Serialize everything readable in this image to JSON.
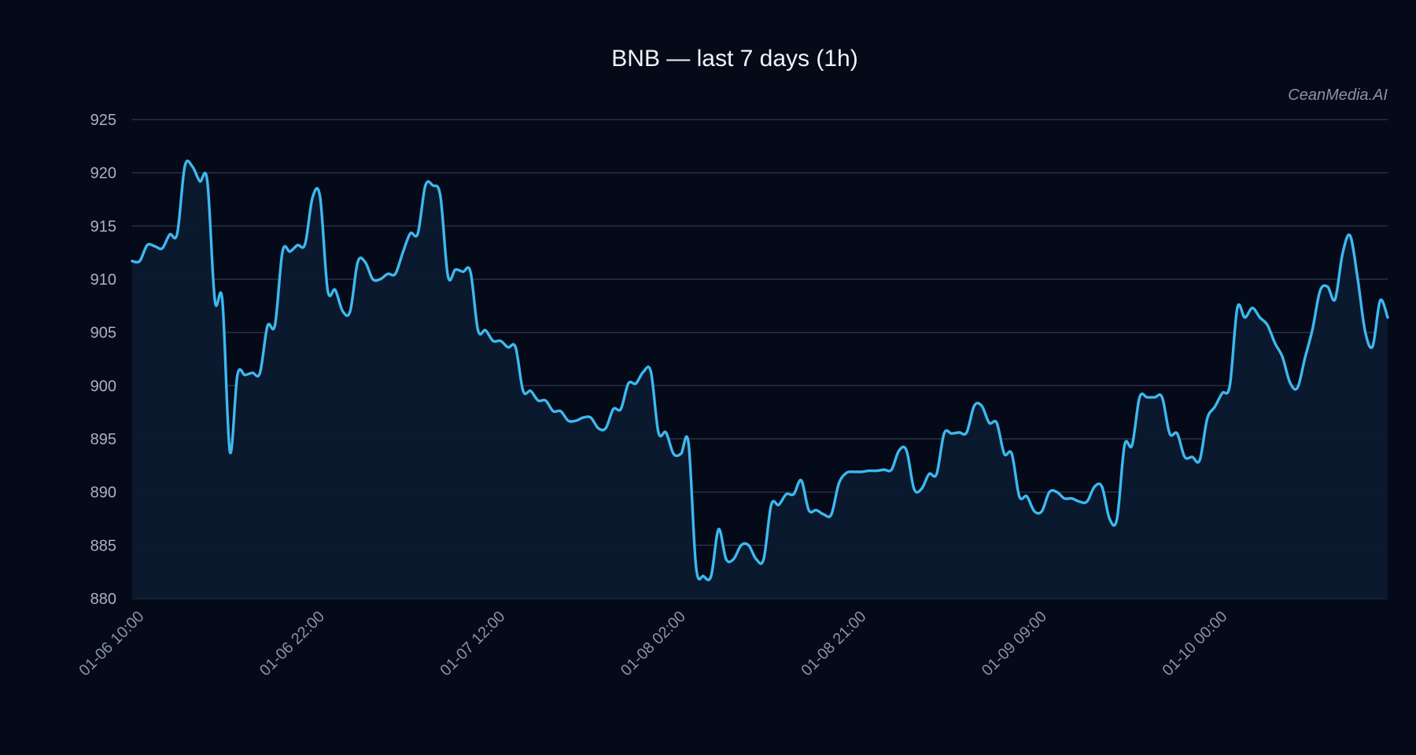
{
  "chart_data": {
    "type": "line",
    "title": "BNB — last 7 days (1h)",
    "watermark": "CeanMedia.AI",
    "xlabel": "",
    "ylabel": "",
    "ylim": [
      880,
      925
    ],
    "yticks": [
      880,
      885,
      890,
      895,
      900,
      905,
      910,
      915,
      920,
      925
    ],
    "x_tick_labels": [
      "01-06 10:00",
      "01-06 22:00",
      "01-07 12:00",
      "01-08 02:00",
      "01-08 21:00",
      "01-09 09:00",
      "01-10 00:00"
    ],
    "grid": true,
    "area_fill": true,
    "colors": {
      "background": "#050a19",
      "line": "#3db8f0",
      "fill": "#0b1a2e",
      "grid": "#2a3346"
    },
    "series": [
      {
        "values": [
          911.7,
          911.7,
          913.2,
          913.1,
          912.9,
          914.2,
          914.3,
          920.6,
          920.6,
          919.2,
          919.2,
          908.0,
          908.0,
          893.8,
          901.0,
          901.0,
          901.2,
          901.2,
          905.6,
          905.7,
          912.6,
          912.6,
          913.2,
          913.3,
          917.7,
          917.7,
          909.0,
          909.0,
          907.0,
          907.0,
          911.6,
          911.6,
          910.0,
          910.0,
          910.5,
          910.5,
          912.5,
          914.3,
          914.3,
          918.8,
          918.8,
          917.8,
          910.3,
          910.9,
          910.7,
          910.7,
          905.2,
          905.2,
          904.2,
          904.2,
          903.6,
          903.6,
          899.5,
          899.5,
          898.6,
          898.6,
          897.6,
          897.6,
          896.7,
          896.7,
          897.0,
          897.0,
          896.0,
          896.0,
          897.8,
          897.8,
          900.2,
          900.2,
          901.3,
          901.3,
          895.6,
          895.6,
          893.6,
          893.6,
          894.6,
          883.0,
          882.1,
          882.1,
          886.5,
          883.7,
          883.7,
          885.0,
          885.0,
          883.7,
          883.7,
          888.8,
          888.8,
          889.8,
          889.8,
          891.1,
          888.3,
          888.3,
          887.9,
          887.9,
          890.8,
          891.8,
          891.9,
          891.9,
          892.0,
          892.0,
          892.1,
          892.1,
          893.9,
          893.9,
          890.3,
          890.3,
          891.7,
          891.7,
          895.5,
          895.5,
          895.6,
          895.6,
          898.1,
          898.1,
          896.5,
          896.5,
          893.6,
          893.6,
          889.6,
          889.6,
          888.2,
          888.2,
          890.0,
          890.0,
          889.4,
          889.4,
          889.1,
          889.1,
          890.5,
          890.5,
          887.5,
          887.5,
          894.4,
          894.4,
          898.9,
          898.9,
          898.9,
          898.9,
          895.5,
          895.5,
          893.3,
          893.3,
          893.0,
          896.9,
          898.0,
          899.3,
          900.0,
          907.3,
          906.4,
          907.3,
          906.4,
          905.7,
          904.0,
          902.7,
          900.3,
          899.8,
          902.6,
          905.3,
          908.9,
          909.3,
          908.1,
          912.4,
          914.1,
          910.1,
          905.1,
          903.7,
          908.0,
          906.4
        ]
      }
    ]
  }
}
